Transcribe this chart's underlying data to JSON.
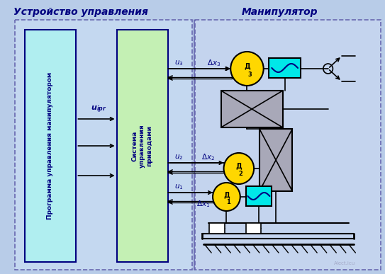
{
  "title_left": "Устройство управления",
  "title_right": "Манипулятор",
  "bg_outer": "#b8cce8",
  "bg_left_section": "#c4d8f0",
  "bg_right_section": "#c4d4ee",
  "bg_prog_box": "#b0eef0",
  "bg_sys_box": "#c4f0b4",
  "yellow": "#FFD700",
  "cyan": "#00E8E8",
  "gray_box": "#a8a8b8",
  "dark_blue": "#000080",
  "black": "#000000",
  "divider_color": "#6868b0",
  "watermark": "AIect.icu"
}
